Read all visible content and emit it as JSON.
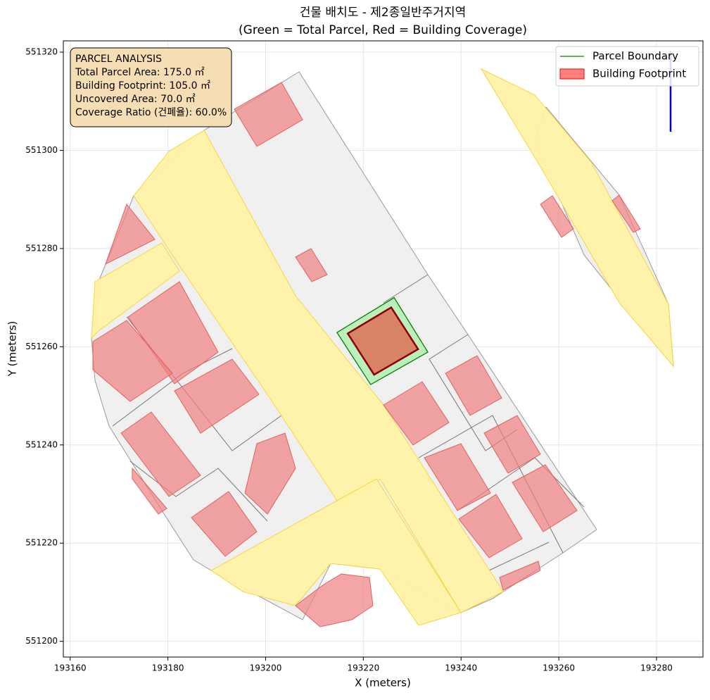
{
  "chart_data": {
    "type": "polygon",
    "title": "건물 배치도 - 제2종일반주거지역",
    "subtitle": "(Green = Total Parcel, Red = Building Coverage)",
    "xlabel": "X (meters)",
    "ylabel": "Y (meters)",
    "xlim": [
      193158.6,
      193289.5
    ],
    "ylim": [
      551196.8,
      551322.3
    ],
    "xticks": [
      193160,
      193180,
      193200,
      193220,
      193240,
      193260,
      193280
    ],
    "yticks": [
      551200,
      551220,
      551240,
      551260,
      551280,
      551300,
      551320
    ],
    "grid": true,
    "legend": "upper right",
    "series": [
      {
        "name": "Parcel Boundary",
        "color": "#008000",
        "fill": "#90ee90",
        "x": [
          193214.6,
          193226.3,
          193233.2,
          193221.5
        ],
        "y": [
          551262.9,
          551270.0,
          551258.9,
          551252.3
        ]
      },
      {
        "name": "Building Footprint",
        "color": "#8b0000",
        "fill": "#ff0000",
        "x": [
          193216.8,
          193225.7,
          193231.2,
          193222.2
        ],
        "y": [
          551262.7,
          551268.0,
          551259.5,
          551254.3
        ]
      }
    ],
    "annotation": [
      "PARCEL ANALYSIS",
      "Total Parcel Area: 175.0 ㎡",
      "Building Footprint: 105.0 ㎡",
      "Uncovered Area: 70.0 ㎡",
      "Coverage Ratio (건폐율): 60.0%"
    ]
  }
}
